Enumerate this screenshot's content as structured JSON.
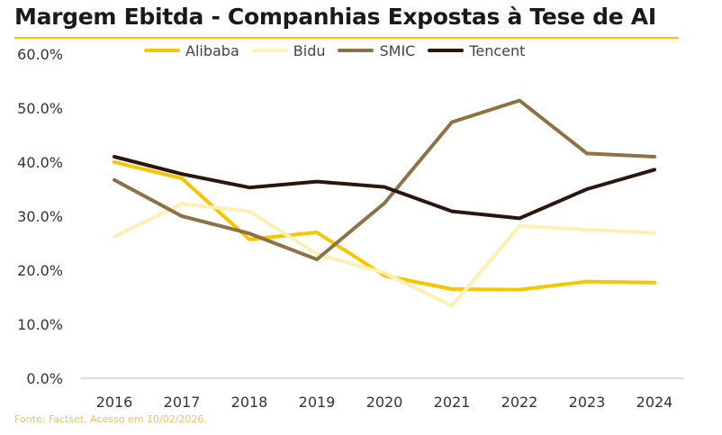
{
  "title": "Margem Ebitda - Companhias Expostas à Tese de AI",
  "source": "Fonte: Factset. Acesso em 10/02/2026.",
  "colors": {
    "accent_rule": "#F2C500",
    "axis": "#bbbbbb",
    "source_text": "#E3C46A"
  },
  "chart_data": {
    "type": "line",
    "title": "Margem Ebitda - Companhias Expostas à Tese de AI",
    "xlabel": "",
    "ylabel": "",
    "x": [
      "2016",
      "2017",
      "2018",
      "2019",
      "2020",
      "2021",
      "2022",
      "2023",
      "2024"
    ],
    "y_ticks": [
      "0.0%",
      "10.0%",
      "20.0%",
      "30.0%",
      "40.0%",
      "50.0%",
      "60.0%"
    ],
    "ylim": [
      0,
      60
    ],
    "grid": false,
    "legend_position": "top",
    "series": [
      {
        "name": "Alibaba",
        "color": "#F7C600",
        "values": [
          40.0,
          37.0,
          25.7,
          27.0,
          19.0,
          16.5,
          16.4,
          17.9,
          17.7
        ]
      },
      {
        "name": "Bidu",
        "color": "#FDF0B4",
        "values": [
          26.2,
          32.3,
          30.9,
          23.0,
          19.5,
          13.4,
          28.2,
          27.5,
          26.9
        ]
      },
      {
        "name": "SMIC",
        "color": "#8C7244",
        "values": [
          36.7,
          30.0,
          26.8,
          22.0,
          32.4,
          47.4,
          51.4,
          41.6,
          41.0
        ]
      },
      {
        "name": "Tencent",
        "color": "#2A160F",
        "values": [
          41.0,
          37.8,
          35.3,
          36.4,
          35.4,
          30.9,
          29.6,
          35.0,
          38.6
        ]
      }
    ]
  }
}
